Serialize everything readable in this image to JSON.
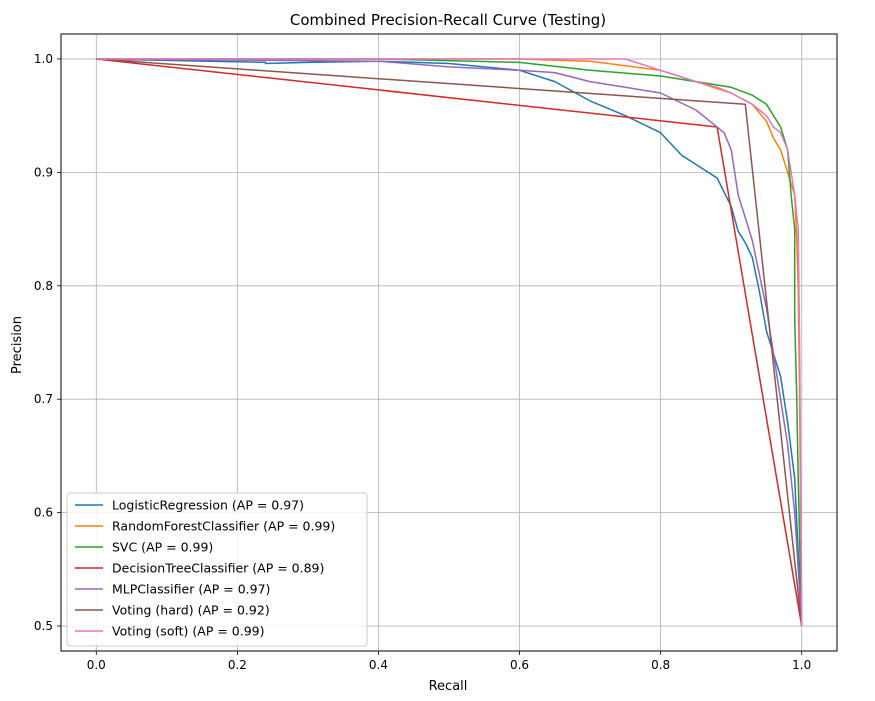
{
  "chart_data": {
    "type": "line",
    "title": "Combined Precision-Recall Curve (Testing)",
    "xlabel": "Recall",
    "ylabel": "Precision",
    "xlim": [
      -0.05,
      1.05
    ],
    "ylim": [
      0.478,
      1.022
    ],
    "xticks": [
      "0.0",
      "0.2",
      "0.4",
      "0.6",
      "0.8",
      "1.0"
    ],
    "yticks": [
      "0.5",
      "0.6",
      "0.7",
      "0.8",
      "0.9",
      "1.0"
    ],
    "grid": true,
    "legend_position": "lower-left",
    "series": [
      {
        "name": "LogisticRegression (AP = 0.97)",
        "color": "#1f77b4",
        "points": [
          [
            0,
            1.0
          ],
          [
            0.24,
            0.997
          ],
          [
            0.24,
            0.996
          ],
          [
            0.3,
            0.997
          ],
          [
            0.4,
            0.998
          ],
          [
            0.5,
            0.996
          ],
          [
            0.6,
            0.99
          ],
          [
            0.65,
            0.98
          ],
          [
            0.7,
            0.963
          ],
          [
            0.75,
            0.95
          ],
          [
            0.8,
            0.935
          ],
          [
            0.83,
            0.915
          ],
          [
            0.86,
            0.903
          ],
          [
            0.88,
            0.895
          ],
          [
            0.9,
            0.87
          ],
          [
            0.91,
            0.848
          ],
          [
            0.92,
            0.838
          ],
          [
            0.93,
            0.825
          ],
          [
            0.94,
            0.795
          ],
          [
            0.95,
            0.76
          ],
          [
            0.96,
            0.74
          ],
          [
            0.97,
            0.72
          ],
          [
            0.98,
            0.68
          ],
          [
            0.99,
            0.63
          ],
          [
            1.0,
            0.5
          ]
        ]
      },
      {
        "name": "RandomForestClassifier (AP = 0.99)",
        "color": "#ff7f0e",
        "points": [
          [
            0,
            1.0
          ],
          [
            0.4,
            1.0
          ],
          [
            0.6,
            1.0
          ],
          [
            0.7,
            0.998
          ],
          [
            0.8,
            0.99
          ],
          [
            0.85,
            0.98
          ],
          [
            0.9,
            0.97
          ],
          [
            0.93,
            0.96
          ],
          [
            0.95,
            0.945
          ],
          [
            0.96,
            0.93
          ],
          [
            0.97,
            0.92
          ],
          [
            0.98,
            0.9
          ],
          [
            0.99,
            0.88
          ],
          [
            0.993,
            0.84
          ],
          [
            0.995,
            0.8
          ],
          [
            0.997,
            0.7
          ],
          [
            1.0,
            0.5
          ]
        ]
      },
      {
        "name": "SVC (AP = 0.99)",
        "color": "#2ca02c",
        "points": [
          [
            0,
            1.0
          ],
          [
            0.4,
            1.0
          ],
          [
            0.6,
            0.997
          ],
          [
            0.7,
            0.99
          ],
          [
            0.8,
            0.985
          ],
          [
            0.85,
            0.98
          ],
          [
            0.9,
            0.975
          ],
          [
            0.93,
            0.968
          ],
          [
            0.95,
            0.96
          ],
          [
            0.96,
            0.95
          ],
          [
            0.97,
            0.94
          ],
          [
            0.98,
            0.92
          ],
          [
            0.985,
            0.88
          ],
          [
            0.99,
            0.85
          ],
          [
            0.99,
            0.77
          ],
          [
            0.993,
            0.7
          ],
          [
            0.995,
            0.63
          ],
          [
            1.0,
            0.5
          ]
        ]
      },
      {
        "name": "DecisionTreeClassifier (AP = 0.89)",
        "color": "#d62728",
        "points": [
          [
            0,
            1.0
          ],
          [
            0.88,
            0.94
          ],
          [
            1.0,
            0.5
          ]
        ]
      },
      {
        "name": "MLPClassifier (AP = 0.97)",
        "color": "#9467bd",
        "points": [
          [
            0,
            1.0
          ],
          [
            0.4,
            0.998
          ],
          [
            0.5,
            0.993
          ],
          [
            0.6,
            0.99
          ],
          [
            0.65,
            0.988
          ],
          [
            0.7,
            0.98
          ],
          [
            0.75,
            0.975
          ],
          [
            0.8,
            0.97
          ],
          [
            0.85,
            0.955
          ],
          [
            0.87,
            0.945
          ],
          [
            0.89,
            0.935
          ],
          [
            0.9,
            0.92
          ],
          [
            0.91,
            0.88
          ],
          [
            0.92,
            0.86
          ],
          [
            0.93,
            0.84
          ],
          [
            0.94,
            0.81
          ],
          [
            0.95,
            0.78
          ],
          [
            0.96,
            0.74
          ],
          [
            0.97,
            0.7
          ],
          [
            0.98,
            0.66
          ],
          [
            0.99,
            0.6
          ],
          [
            1.0,
            0.5
          ]
        ]
      },
      {
        "name": "Voting (hard) (AP = 0.92)",
        "color": "#8c564b",
        "points": [
          [
            0,
            1.0
          ],
          [
            0.92,
            0.96
          ],
          [
            1.0,
            0.5
          ]
        ]
      },
      {
        "name": "Voting (soft) (AP = 0.99)",
        "color": "#e377c2",
        "points": [
          [
            0,
            1.0
          ],
          [
            0.75,
            1.0
          ],
          [
            0.8,
            0.99
          ],
          [
            0.85,
            0.98
          ],
          [
            0.88,
            0.975
          ],
          [
            0.9,
            0.97
          ],
          [
            0.93,
            0.96
          ],
          [
            0.95,
            0.95
          ],
          [
            0.96,
            0.94
          ],
          [
            0.97,
            0.935
          ],
          [
            0.98,
            0.92
          ],
          [
            0.985,
            0.9
          ],
          [
            0.99,
            0.88
          ],
          [
            0.995,
            0.85
          ],
          [
            0.997,
            0.75
          ],
          [
            1.0,
            0.5
          ]
        ]
      }
    ]
  }
}
